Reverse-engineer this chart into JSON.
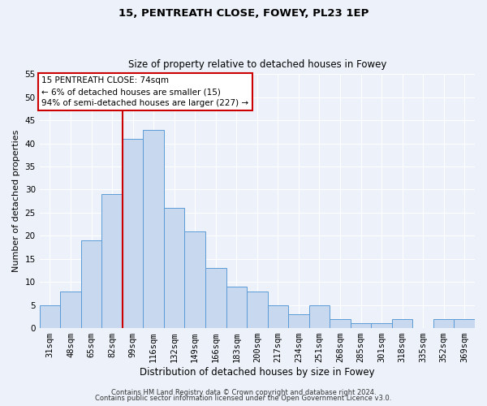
{
  "title1": "15, PENTREATH CLOSE, FOWEY, PL23 1EP",
  "title2": "Size of property relative to detached houses in Fowey",
  "xlabel": "Distribution of detached houses by size in Fowey",
  "ylabel": "Number of detached properties",
  "categories": [
    "31sqm",
    "48sqm",
    "65sqm",
    "82sqm",
    "99sqm",
    "116sqm",
    "132sqm",
    "149sqm",
    "166sqm",
    "183sqm",
    "200sqm",
    "217sqm",
    "234sqm",
    "251sqm",
    "268sqm",
    "285sqm",
    "301sqm",
    "318sqm",
    "335sqm",
    "352sqm",
    "369sqm"
  ],
  "values": [
    5,
    8,
    19,
    29,
    41,
    43,
    26,
    21,
    13,
    9,
    8,
    5,
    3,
    5,
    2,
    1,
    1,
    2,
    0,
    2,
    2
  ],
  "bar_color": "#c8d9ef",
  "bar_edge_color": "#5b9bd5",
  "ylim": [
    0,
    55
  ],
  "yticks": [
    0,
    5,
    10,
    15,
    20,
    25,
    30,
    35,
    40,
    45,
    50,
    55
  ],
  "vline_color": "#cc0000",
  "annotation_title": "15 PENTREATH CLOSE: 74sqm",
  "annotation_line1": "← 6% of detached houses are smaller (15)",
  "annotation_line2": "94% of semi-detached houses are larger (227) →",
  "annotation_box_color": "#cc0000",
  "footer1": "Contains HM Land Registry data © Crown copyright and database right 2024.",
  "footer2": "Contains public sector information licensed under the Open Government Licence v3.0.",
  "background_color": "#edf2fa",
  "grid_color": "#ffffff",
  "title1_fontsize": 9.5,
  "title2_fontsize": 8.5,
  "xlabel_fontsize": 8.5,
  "ylabel_fontsize": 8,
  "tick_fontsize": 7.5,
  "annotation_fontsize": 7.5,
  "footer_fontsize": 6
}
